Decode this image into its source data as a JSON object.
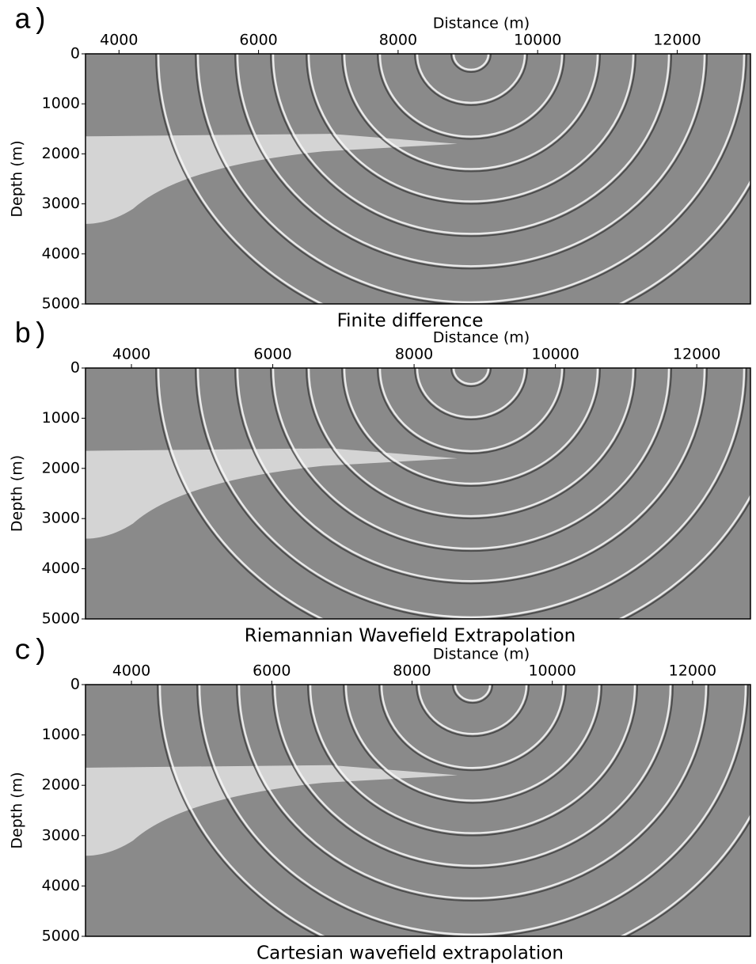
{
  "chart_data": [
    {
      "type": "image",
      "panel_label": "a)",
      "title": "Finite difference",
      "xlabel": "Distance (m)",
      "ylabel": "Depth (m)",
      "xlim": [
        3520,
        13050
      ],
      "ylim": [
        5000,
        0
      ],
      "xticks": [
        4000,
        6000,
        8000,
        10000,
        12000
      ],
      "yticks": [
        0,
        1000,
        2000,
        3000,
        4000,
        5000
      ]
    },
    {
      "type": "image",
      "panel_label": "b)",
      "title": "Riemannian Wavefield Extrapolation",
      "xlabel": "Distance (m)",
      "ylabel": "Depth (m)",
      "xlim": [
        3350,
        12760
      ],
      "ylim": [
        5000,
        0
      ],
      "xticks": [
        4000,
        6000,
        8000,
        10000,
        12000
      ],
      "yticks": [
        0,
        1000,
        2000,
        3000,
        4000,
        5000
      ]
    },
    {
      "type": "image",
      "panel_label": "c)",
      "title": "Cartesian wavefield extrapolation",
      "xlabel": "Distance (m)",
      "ylabel": "Depth (m)",
      "xlim": [
        3345,
        12825
      ],
      "ylim": [
        5000,
        0
      ],
      "xticks": [
        4000,
        6000,
        8000,
        10000,
        12000
      ],
      "yticks": [
        0,
        1000,
        2000,
        3000,
        4000,
        5000
      ]
    }
  ]
}
